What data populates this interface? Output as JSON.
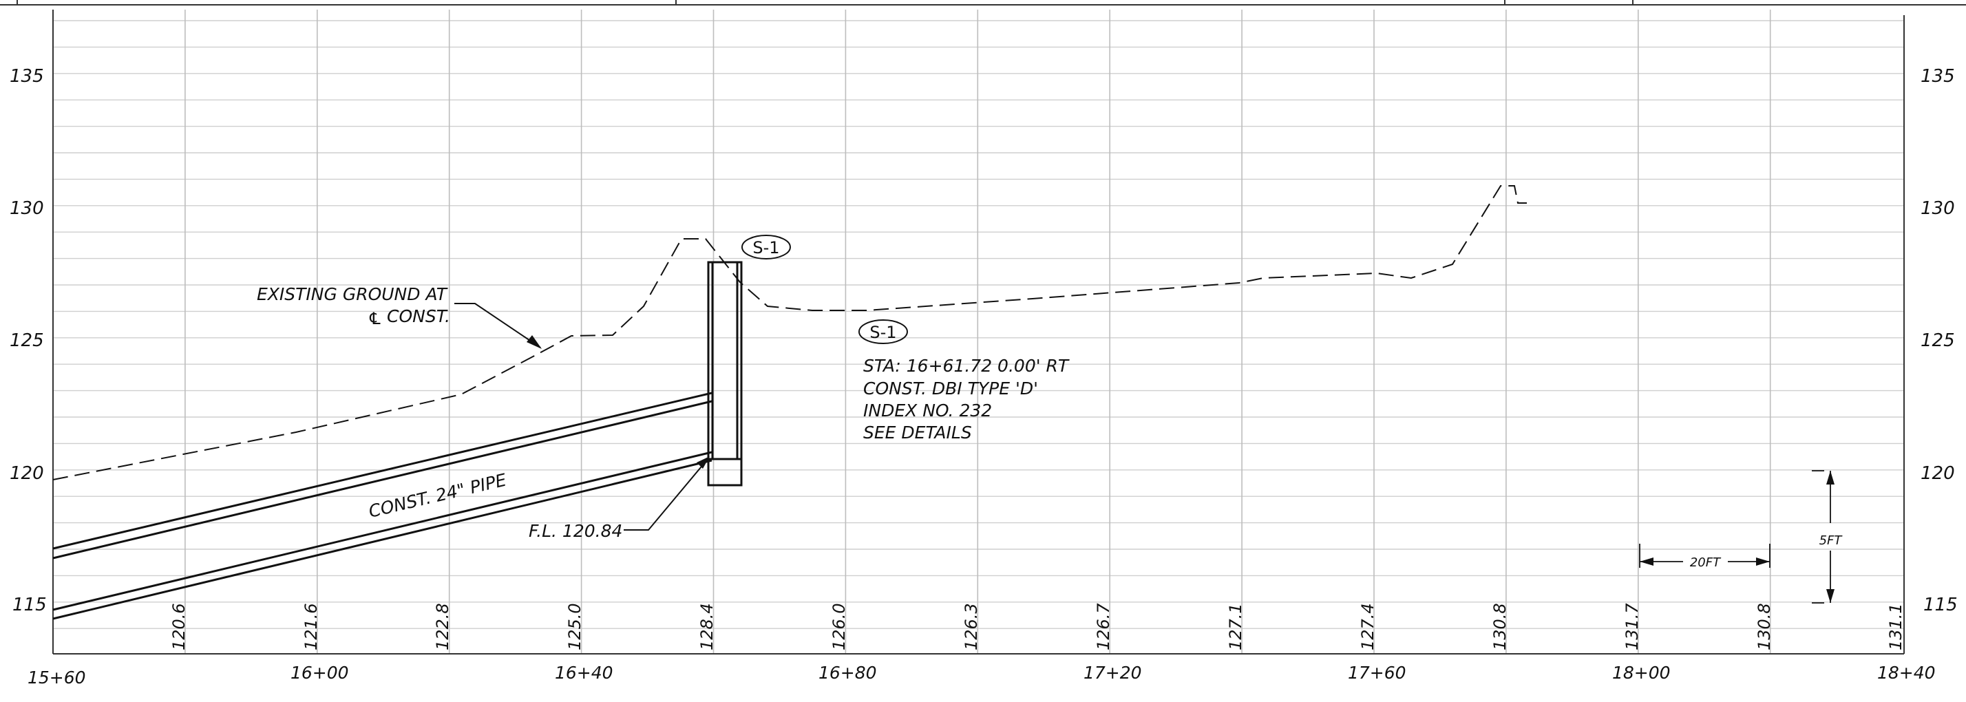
{
  "profile": {
    "elevation_labels": [
      "135",
      "130",
      "125",
      "120",
      "115"
    ],
    "station_labels": [
      "15+60",
      "16+00",
      "16+40",
      "16+80",
      "17+20",
      "17+60",
      "18+00",
      "18+40"
    ],
    "column_elevations": [
      "120.6",
      "121.6",
      "122.8",
      "125.0",
      "128.4",
      "126.0",
      "126.3",
      "126.7",
      "127.1",
      "127.4",
      "130.8",
      "131.7",
      "130.8",
      "131.1"
    ],
    "existing_ground_label_line1": "EXISTING GROUND AT",
    "existing_ground_label_line2": "CONST.",
    "centerline_symbol": "℄",
    "pipe_label": "CONST. 24\" PIPE",
    "flowline_label": "F.L. 120.84",
    "structure_tag": "S-1",
    "structure_note_lines": [
      "STA: 16+61.72 0.00' RT",
      "CONST. DBI TYPE 'D'",
      "INDEX NO. 232",
      "SEE DETAILS"
    ],
    "horizontal_scale_label": "20FT",
    "vertical_scale_label": "5FT"
  },
  "colors": {
    "ink": "#111111",
    "grid": "#cfcfcf"
  }
}
